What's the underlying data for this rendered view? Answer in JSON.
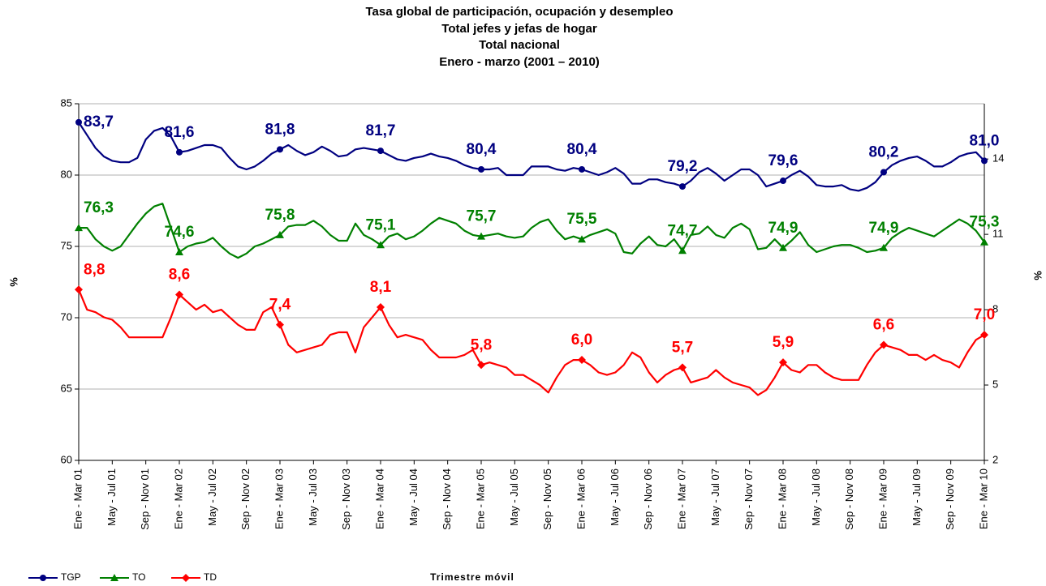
{
  "chart_data": {
    "type": "line",
    "title": [
      "Tasa global de participación, ocupación y desempleo",
      "Total jefes y jefas de hogar",
      "Total nacional",
      "Enero - marzo (2001 – 2010)"
    ],
    "xlabel": "Trimestre móvil",
    "ylabel": "%",
    "y2label": "%",
    "categories": [
      "Ene - Mar 01",
      null,
      null,
      null,
      "May - Jul 01",
      null,
      null,
      null,
      "Sep - Nov 01",
      null,
      null,
      null,
      "Ene - Mar 02",
      null,
      null,
      null,
      "May - Jul 02",
      null,
      null,
      null,
      "Sep - Nov 02",
      null,
      null,
      null,
      "Ene - Mar 03",
      null,
      null,
      null,
      "May - Jul 03",
      null,
      null,
      null,
      "Sep - Nov 03",
      null,
      null,
      null,
      "Ene - Mar 04",
      null,
      null,
      null,
      "May - Jul 04",
      null,
      null,
      null,
      "Sep - Nov 04",
      null,
      null,
      null,
      "Ene - Mar 05",
      null,
      null,
      null,
      "May - Jul 05",
      null,
      null,
      null,
      "Sep - Nov 05",
      null,
      null,
      null,
      "Ene - Mar 06",
      null,
      null,
      null,
      "May - Jul 06",
      null,
      null,
      null,
      "Sep - Nov 06",
      null,
      null,
      null,
      "Ene - Mar 07",
      null,
      null,
      null,
      "May - Jul 07",
      null,
      null,
      null,
      "Sep - Nov 07",
      null,
      null,
      null,
      "Ene - Mar 08",
      null,
      null,
      null,
      "May - Jul 08",
      null,
      null,
      null,
      "Sep - Nov 08",
      null,
      null,
      null,
      "Ene - Mar 09",
      null,
      null,
      null,
      "May - Jul 09",
      null,
      null,
      null,
      "Sep - Nov 09",
      null,
      null,
      null,
      "Ene - Mar 10"
    ],
    "ylim": [
      60,
      85
    ],
    "yticks": [
      60,
      65,
      70,
      75,
      80,
      85
    ],
    "y2lim": [
      2,
      16.2
    ],
    "y2ticks": [
      2,
      5,
      8,
      11,
      14
    ],
    "grid": true,
    "legend": "bottom-left",
    "series": [
      {
        "name": "TGP",
        "color": "#000080",
        "marker": "circle",
        "values": [
          83.7,
          82.8,
          81.9,
          81.3,
          81.0,
          80.9,
          80.9,
          81.2,
          82.5,
          83.1,
          83.3,
          82.7,
          81.6,
          81.7,
          81.9,
          82.1,
          82.1,
          81.9,
          81.2,
          80.6,
          80.4,
          80.6,
          81.0,
          81.5,
          81.8,
          82.1,
          81.7,
          81.4,
          81.6,
          82.0,
          81.7,
          81.3,
          81.4,
          81.8,
          81.9,
          81.8,
          81.7,
          81.4,
          81.1,
          81.0,
          81.2,
          81.3,
          81.5,
          81.3,
          81.2,
          81.0,
          80.7,
          80.5,
          80.4,
          80.4,
          80.5,
          80.0,
          80.0,
          80.0,
          80.6,
          80.6,
          80.6,
          80.4,
          80.3,
          80.5,
          80.4,
          80.2,
          80.0,
          80.2,
          80.5,
          80.1,
          79.4,
          79.4,
          79.7,
          79.7,
          79.5,
          79.4,
          79.2,
          79.6,
          80.2,
          80.5,
          80.1,
          79.6,
          80.0,
          80.4,
          80.4,
          80.0,
          79.2,
          79.4,
          79.6,
          80.0,
          80.3,
          79.9,
          79.3,
          79.2,
          79.2,
          79.3,
          79.0,
          78.9,
          79.1,
          79.5,
          80.2,
          80.7,
          81.0,
          81.2,
          81.3,
          81.0,
          80.6,
          80.6,
          80.9,
          81.3,
          81.5,
          81.6,
          81.0
        ],
        "value_labels": [
          "83,7",
          null,
          null,
          null,
          null,
          null,
          null,
          null,
          null,
          null,
          null,
          null,
          "81,6",
          null,
          null,
          null,
          null,
          null,
          null,
          null,
          null,
          null,
          null,
          null,
          "81,8",
          null,
          null,
          null,
          null,
          null,
          null,
          null,
          null,
          null,
          null,
          null,
          "81,7",
          null,
          null,
          null,
          null,
          null,
          null,
          null,
          null,
          null,
          null,
          null,
          "80,4",
          null,
          null,
          null,
          null,
          null,
          null,
          null,
          null,
          null,
          null,
          null,
          "80,4",
          null,
          null,
          null,
          null,
          null,
          null,
          null,
          null,
          null,
          null,
          null,
          "79,2",
          null,
          null,
          null,
          null,
          null,
          null,
          null,
          null,
          null,
          null,
          null,
          "79,6",
          null,
          null,
          null,
          null,
          null,
          null,
          null,
          null,
          null,
          null,
          null,
          "80,2",
          null,
          null,
          null,
          null,
          null,
          null,
          null,
          null,
          null,
          null,
          null,
          "81,0"
        ]
      },
      {
        "name": "TO",
        "color": "#008000",
        "marker": "triangle",
        "values": [
          76.3,
          76.3,
          75.5,
          75.0,
          74.7,
          75.0,
          75.8,
          76.6,
          77.3,
          77.8,
          78.0,
          76.3,
          74.6,
          75.0,
          75.2,
          75.3,
          75.6,
          75.0,
          74.5,
          74.2,
          74.5,
          75.0,
          75.2,
          75.5,
          75.8,
          76.4,
          76.5,
          76.5,
          76.8,
          76.4,
          75.8,
          75.4,
          75.4,
          76.6,
          75.8,
          75.5,
          75.1,
          75.7,
          75.9,
          75.5,
          75.7,
          76.1,
          76.6,
          77.0,
          76.8,
          76.6,
          76.1,
          75.8,
          75.7,
          75.8,
          75.9,
          75.7,
          75.6,
          75.7,
          76.3,
          76.7,
          76.9,
          76.1,
          75.5,
          75.7,
          75.5,
          75.8,
          76.0,
          76.2,
          75.9,
          74.6,
          74.5,
          75.2,
          75.7,
          75.1,
          75.0,
          75.5,
          74.7,
          75.8,
          75.9,
          76.4,
          75.8,
          75.6,
          76.3,
          76.6,
          76.2,
          74.8,
          74.9,
          75.5,
          74.9,
          75.4,
          76.0,
          75.1,
          74.6,
          74.8,
          75.0,
          75.1,
          75.1,
          74.9,
          74.6,
          74.7,
          74.9,
          75.6,
          76.0,
          76.3,
          76.1,
          75.9,
          75.7,
          76.1,
          76.5,
          76.9,
          76.6,
          76.1,
          75.3
        ],
        "value_labels": [
          "76,3",
          null,
          null,
          null,
          null,
          null,
          null,
          null,
          null,
          null,
          null,
          null,
          "74,6",
          null,
          null,
          null,
          null,
          null,
          null,
          null,
          null,
          null,
          null,
          null,
          "75,8",
          null,
          null,
          null,
          null,
          null,
          null,
          null,
          null,
          null,
          null,
          null,
          "75,1",
          null,
          null,
          null,
          null,
          null,
          null,
          null,
          null,
          null,
          null,
          null,
          "75,7",
          null,
          null,
          null,
          null,
          null,
          null,
          null,
          null,
          null,
          null,
          null,
          "75,5",
          null,
          null,
          null,
          null,
          null,
          null,
          null,
          null,
          null,
          null,
          null,
          "74,7",
          null,
          null,
          null,
          null,
          null,
          null,
          null,
          null,
          null,
          null,
          null,
          "74,9",
          null,
          null,
          null,
          null,
          null,
          null,
          null,
          null,
          null,
          null,
          null,
          "74,9",
          null,
          null,
          null,
          null,
          null,
          null,
          null,
          null,
          null,
          null,
          null,
          "75,3"
        ]
      },
      {
        "name": "TD",
        "color": "#ff0000",
        "marker": "diamond",
        "axis": "y2",
        "values": [
          8.8,
          8.0,
          7.9,
          7.7,
          7.6,
          7.3,
          6.9,
          6.9,
          6.9,
          6.9,
          6.9,
          7.7,
          8.6,
          8.3,
          8.0,
          8.2,
          7.9,
          8.0,
          7.7,
          7.4,
          7.2,
          7.2,
          7.9,
          8.1,
          7.4,
          6.6,
          6.3,
          6.4,
          6.5,
          6.6,
          7.0,
          7.1,
          7.1,
          6.3,
          7.3,
          7.7,
          8.1,
          7.4,
          6.9,
          7.0,
          6.9,
          6.8,
          6.4,
          6.1,
          6.1,
          6.1,
          6.2,
          6.4,
          5.8,
          5.9,
          5.8,
          5.7,
          5.4,
          5.4,
          5.2,
          5.0,
          4.7,
          5.3,
          5.8,
          6.0,
          6.0,
          5.8,
          5.5,
          5.4,
          5.5,
          5.8,
          6.3,
          6.1,
          5.5,
          5.1,
          5.4,
          5.6,
          5.7,
          5.1,
          5.2,
          5.3,
          5.6,
          5.3,
          5.1,
          5.0,
          4.9,
          4.6,
          4.8,
          5.3,
          5.9,
          5.6,
          5.5,
          5.8,
          5.8,
          5.5,
          5.3,
          5.2,
          5.2,
          5.2,
          5.8,
          6.3,
          6.6,
          6.5,
          6.4,
          6.2,
          6.2,
          6.0,
          6.2,
          6.0,
          5.9,
          5.7,
          6.3,
          6.8,
          7.0
        ],
        "value_labels": [
          "8,8",
          null,
          null,
          null,
          null,
          null,
          null,
          null,
          null,
          null,
          null,
          null,
          "8,6",
          null,
          null,
          null,
          null,
          null,
          null,
          null,
          null,
          null,
          null,
          null,
          "7,4",
          null,
          null,
          null,
          null,
          null,
          null,
          null,
          null,
          null,
          null,
          null,
          "8,1",
          null,
          null,
          null,
          null,
          null,
          null,
          null,
          null,
          null,
          null,
          null,
          "5,8",
          null,
          null,
          null,
          null,
          null,
          null,
          null,
          null,
          null,
          null,
          null,
          "6,0",
          null,
          null,
          null,
          null,
          null,
          null,
          null,
          null,
          null,
          null,
          null,
          "5,7",
          null,
          null,
          null,
          null,
          null,
          null,
          null,
          null,
          null,
          null,
          null,
          "5,9",
          null,
          null,
          null,
          null,
          null,
          null,
          null,
          null,
          null,
          null,
          null,
          "6,6",
          null,
          null,
          null,
          null,
          null,
          null,
          null,
          null,
          null,
          null,
          null,
          "7,0"
        ]
      }
    ]
  }
}
